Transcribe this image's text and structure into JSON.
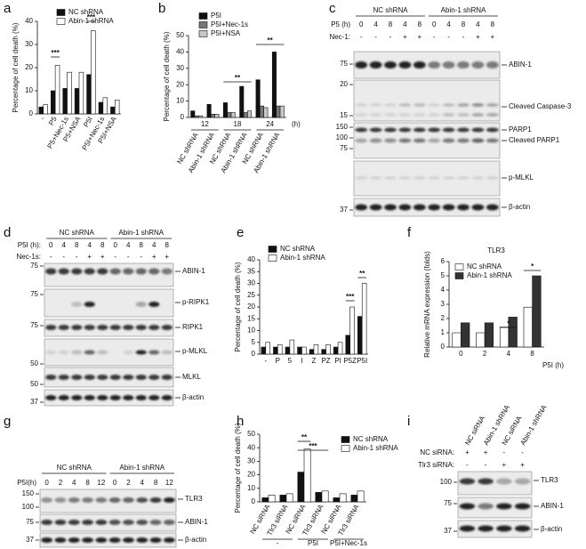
{
  "chart_data": [
    {
      "type": "bar",
      "panel": "a",
      "ylabel": "Percentage of cell death (%)",
      "categories": [
        "-",
        "P5",
        "P5+Nec-1s",
        "P5+NSA",
        "P5I",
        "P5I+Nec-1s",
        "P5I+NSA"
      ],
      "series": [
        {
          "name": "NC shRNA",
          "color": "#111111",
          "values": [
            3,
            10,
            11,
            11,
            17,
            5,
            3
          ]
        },
        {
          "name": "Abin-1 shRNA",
          "color": "#ffffff",
          "values": [
            4,
            21,
            18,
            18,
            36,
            7,
            6
          ]
        }
      ],
      "ylim": [
        0,
        40
      ],
      "yticks": [
        0,
        10,
        20,
        30,
        40
      ],
      "annotations": [
        "***",
        "***"
      ]
    },
    {
      "type": "bar",
      "panel": "b",
      "ylabel": "Percentage of cell death (%)",
      "categories": [
        "NC shRNA",
        "Abin-1 shRNA",
        "NC shRNA",
        "Abin-1 shRNA",
        "NC shRNA",
        "Abin-1 shRNA"
      ],
      "groups": [
        "12",
        "18",
        "24"
      ],
      "group_unit": "(h)",
      "series": [
        {
          "name": "P5I",
          "color": "#111111",
          "values": [
            4,
            8,
            9,
            19,
            23,
            40
          ]
        },
        {
          "name": "P5I+Nec-1s",
          "color": "#777777",
          "values": [
            1,
            2,
            3,
            3,
            7,
            7
          ]
        },
        {
          "name": "P5I+NSA",
          "color": "#c8c8c8",
          "values": [
            1,
            2,
            3,
            4,
            6,
            7
          ]
        }
      ],
      "ylim": [
        0,
        50
      ],
      "yticks": [
        0,
        10,
        20,
        30,
        40,
        50
      ],
      "annotations": [
        "**",
        "**"
      ]
    },
    {
      "type": "bar",
      "panel": "e",
      "ylabel": "Percentage of cell death (%)",
      "categories": [
        "-",
        "P",
        "5",
        "I",
        "Z",
        "PZ",
        "PI",
        "P5Z",
        "P5I"
      ],
      "series": [
        {
          "name": "NC shRNA",
          "color": "#111111",
          "values": [
            3,
            3,
            3,
            3,
            2,
            2,
            3,
            8,
            16
          ]
        },
        {
          "name": "Abin-1 shRNA",
          "color": "#ffffff",
          "values": [
            5,
            4,
            6,
            3,
            4,
            4,
            5,
            20,
            30
          ]
        }
      ],
      "ylim": [
        0,
        40
      ],
      "yticks": [
        0,
        5,
        10,
        15,
        20,
        25,
        30,
        35,
        40
      ],
      "annotations": [
        "***",
        "**"
      ]
    },
    {
      "type": "bar",
      "panel": "f",
      "title": "TLR3",
      "ylabel": "Relative mRNA expression (folds)",
      "xlabel": "P5I (h)",
      "categories": [
        "0",
        "2",
        "4",
        "8"
      ],
      "series": [
        {
          "name": "NC shRNA",
          "color": "#ffffff",
          "values": [
            1.0,
            1.0,
            1.4,
            2.8
          ]
        },
        {
          "name": "Abin-1 shRNA",
          "color": "#333333",
          "values": [
            1.7,
            1.7,
            2.1,
            5.0
          ]
        }
      ],
      "ylim": [
        0,
        6
      ],
      "yticks": [
        0,
        1,
        2,
        3,
        4,
        5,
        6
      ],
      "annotations": [
        "*",
        "*"
      ]
    },
    {
      "type": "bar",
      "panel": "h",
      "ylabel": "Percentage of cell death (%)",
      "categories": [
        "NC siRNA",
        "Tlr3 siRNA",
        "NC siRNA",
        "Tlr3 siRNA",
        "NC siRNA",
        "Tlr3 siRNA"
      ],
      "groups": [
        "-",
        "P5I",
        "P5I+Nec-1s"
      ],
      "series": [
        {
          "name": "NC shRNA",
          "color": "#111111",
          "values": [
            3,
            5,
            22,
            7,
            3,
            5
          ]
        },
        {
          "name": "Abin-1 shRNA",
          "color": "#ffffff",
          "values": [
            5,
            6,
            39,
            8,
            6,
            8
          ]
        }
      ],
      "ylim": [
        0,
        50
      ],
      "yticks": [
        0,
        10,
        20,
        30,
        40,
        50
      ],
      "annotations": [
        "**",
        "***"
      ]
    }
  ],
  "blots": [
    {
      "panel": "c",
      "groups": [
        "NC shRNA",
        "Abin-1 shRNA"
      ],
      "rows": [
        {
          "label": "P5 (h)",
          "lanes": [
            "0",
            "4",
            "8",
            "4",
            "8",
            "0",
            "4",
            "8",
            "4",
            "8"
          ]
        },
        {
          "label": "Nec-1:",
          "lanes": [
            "-",
            "-",
            "-",
            "+",
            "+",
            "-",
            "-",
            "-",
            "+",
            "+"
          ]
        }
      ],
      "markers": [
        "75",
        "20",
        "15",
        "150",
        "100",
        "75",
        "37"
      ],
      "targets": [
        "ABIN-1",
        "Cleaved Caspase-3",
        "PARP1",
        "Cleaved PARP1",
        "p-MLKL",
        "β-actin"
      ]
    },
    {
      "panel": "d",
      "groups": [
        "NC shRNA",
        "Abin-1 shRNA"
      ],
      "rows": [
        {
          "label": "P5I (h):",
          "lanes": [
            "0",
            "4",
            "8",
            "4",
            "8",
            "0",
            "4",
            "8",
            "4",
            "8"
          ]
        },
        {
          "label": "Nec-1s:",
          "lanes": [
            "-",
            "-",
            "-",
            "+",
            "+",
            "-",
            "-",
            "-",
            "+",
            "+"
          ]
        }
      ],
      "markers": [
        "75",
        "75",
        "75",
        "50",
        "50",
        "37"
      ],
      "targets": [
        "ABIN-1",
        "p-RIPK1",
        "RIPK1",
        "p-MLKL",
        "MLKL",
        "β-actin"
      ]
    },
    {
      "panel": "g",
      "groups": [
        "NC shRNA",
        "Abin-1 shRNA"
      ],
      "rows": [
        {
          "label": "P5I(h)",
          "lanes": [
            "0",
            "2",
            "4",
            "8",
            "12",
            "0",
            "2",
            "4",
            "8",
            "12"
          ]
        }
      ],
      "markers": [
        "150",
        "100",
        "75",
        "37"
      ],
      "targets": [
        "TLR3",
        "ABIN-1",
        "β-actin"
      ]
    },
    {
      "panel": "i",
      "columns": [
        "NC siRNA",
        "Abin-1 shRNA",
        "NC siRNA",
        "Abin-1 shRNA"
      ],
      "rows": [
        {
          "label": "NC siRNA:",
          "lanes": [
            "+",
            "+",
            "-",
            "-"
          ]
        },
        {
          "label": "Tlr3 siRNA:",
          "lanes": [
            "-",
            "-",
            "+",
            "+"
          ]
        }
      ],
      "markers": [
        "100",
        "75",
        "37"
      ],
      "targets": [
        "TLR3",
        "ABIN-1",
        "β-actin"
      ]
    }
  ]
}
